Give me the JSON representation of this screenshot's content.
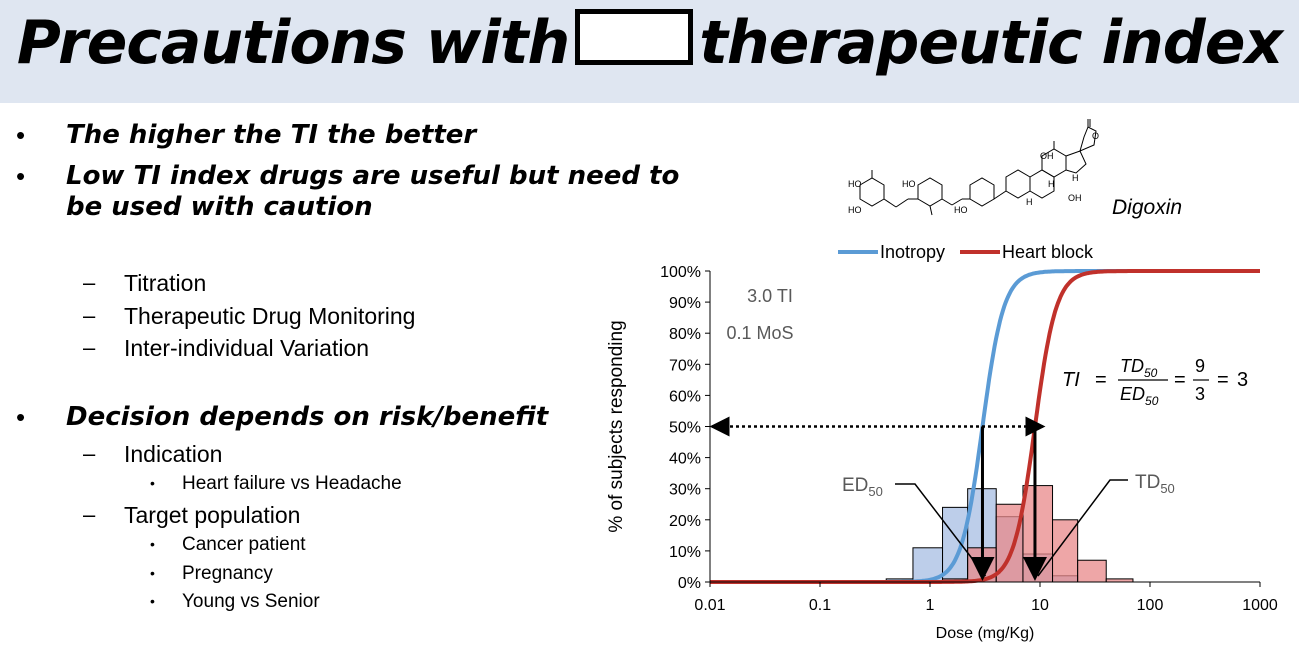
{
  "title": {
    "before": "Precautions with",
    "after": "therapeutic index"
  },
  "bullets": [
    "The higher the TI the better",
    "Low TI index drugs are useful  but need to",
    "be used with caution",
    "Decision depends on risk/benefit"
  ],
  "sub_items": [
    "Titration",
    "Therapeutic Drug Monitoring",
    "Inter-individual Variation",
    "Indication",
    "Target population"
  ],
  "sub_sub_items": [
    "Heart failure vs Headache",
    "Cancer patient",
    "Pregnancy",
    "Young vs Senior"
  ],
  "markers": {
    "bullet": "•",
    "dash": "–"
  },
  "molecule": {
    "name": "Digoxin",
    "atoms": [
      "HO",
      "HO",
      "HO",
      "HO",
      "O",
      "OH",
      "OH",
      "H",
      "H",
      "H"
    ]
  },
  "chart_data": {
    "type": "line",
    "x_scale": "log",
    "xlim": [
      0.01,
      1000
    ],
    "ylim": [
      0,
      100
    ],
    "xlabel": "Dose (mg/Kg)",
    "ylabel": "% of subjects responding",
    "x_ticks": [
      "0.01",
      "0.1",
      "1",
      "10",
      "100",
      "1000"
    ],
    "y_ticks": [
      "0%",
      "10%",
      "20%",
      "30%",
      "40%",
      "50%",
      "60%",
      "70%",
      "80%",
      "90%",
      "100%"
    ],
    "grid": false,
    "legend_position": "top",
    "series": [
      {
        "name": "Inotropy",
        "color": "#5b9bd5",
        "ed50": 3,
        "slope": 4.5
      },
      {
        "name": "Heart block",
        "color": "#c0312b",
        "ed50": 9,
        "slope": 4.5
      }
    ],
    "histograms": [
      {
        "series": "Inotropy",
        "color": "#a7bde3",
        "bins": [
          [
            0.4,
            0.7,
            1
          ],
          [
            0.7,
            1.3,
            11
          ],
          [
            1.3,
            2.2,
            24
          ],
          [
            2.2,
            4,
            30
          ],
          [
            4,
            7,
            21
          ],
          [
            7,
            13,
            9
          ],
          [
            13,
            22,
            2
          ]
        ]
      },
      {
        "series": "Heart block",
        "color": "#e8888a",
        "bins": [
          [
            1.3,
            2.2,
            1
          ],
          [
            2.2,
            4,
            11
          ],
          [
            4,
            7,
            25
          ],
          [
            7,
            13,
            31
          ],
          [
            13,
            22,
            20
          ],
          [
            22,
            40,
            7
          ],
          [
            40,
            70,
            1
          ]
        ]
      }
    ],
    "annotations": {
      "ti": "3.0 TI",
      "mos": "0.1 MoS",
      "ed": "ED",
      "td": "TD",
      "subscript": "50",
      "ed50_x": 3,
      "td50_x": 9,
      "formula": {
        "lhs": "TI",
        "num_sym": "TD",
        "den_sym": "ED",
        "sub": "50",
        "num_val": "9",
        "den_val": "3",
        "result": "3"
      }
    }
  }
}
